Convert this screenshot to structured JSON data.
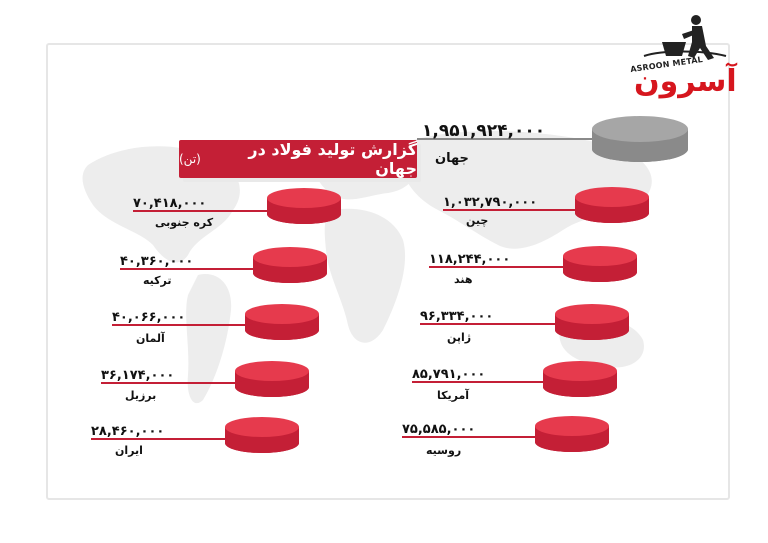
{
  "logo": {
    "brand_latin": "ASROON METAL",
    "brand_fa": "آسرون"
  },
  "title": {
    "main": "گزارش تولید فولاد در جهان",
    "unit": "(تن)"
  },
  "colors": {
    "accent": "#c41f36",
    "disc_top": "#e63a4d",
    "disc_side": "#c41f36",
    "world_top": "#a6a6a6",
    "world_side": "#8a8a8a",
    "map": "#ededed"
  },
  "chart_data": {
    "type": "bar",
    "title": "گزارش تولید فولاد در جهان(تن)",
    "unit": "تن",
    "total": {
      "label": "جهان",
      "value": 1951924000,
      "display": "۱,۹۵۱,۹۲۴,۰۰۰"
    },
    "categories": [
      "چین",
      "هند",
      "ژاپن",
      "آمریکا",
      "روسیه",
      "کره جنوبی",
      "ترکیه",
      "آلمان",
      "برزیل",
      "ایران"
    ],
    "values": [
      1032790000,
      118244000,
      96334000,
      85791000,
      75585000,
      70418000,
      40360000,
      40066000,
      36174000,
      28460000
    ],
    "display_values": [
      "۱,۰۳۲,۷۹۰,۰۰۰",
      "۱۱۸,۲۴۴,۰۰۰",
      "۹۶,۳۳۴,۰۰۰",
      "۸۵,۷۹۱,۰۰۰",
      "۷۵,۵۸۵,۰۰۰",
      "۷۰,۴۱۸,۰۰۰",
      "۴۰,۳۶۰,۰۰۰",
      "۴۰,۰۶۶,۰۰۰",
      "۳۶,۱۷۴,۰۰۰",
      "۲۸,۴۶۰,۰۰۰"
    ]
  }
}
